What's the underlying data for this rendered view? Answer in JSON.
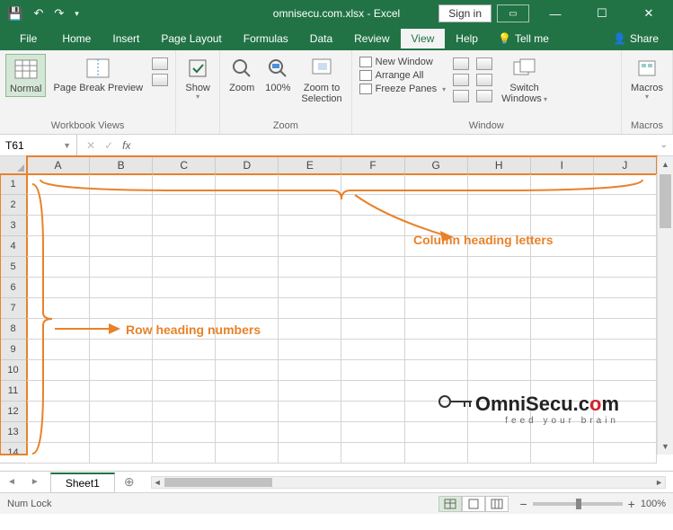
{
  "titlebar": {
    "filename": "omnisecu.com.xlsx",
    "app": "Excel",
    "signin": "Sign in"
  },
  "tabs": {
    "file": "File",
    "home": "Home",
    "insert": "Insert",
    "pagelayout": "Page Layout",
    "formulas": "Formulas",
    "data": "Data",
    "review": "Review",
    "view": "View",
    "help": "Help",
    "tellme": "Tell me",
    "share": "Share"
  },
  "ribbon": {
    "workbook_views": {
      "label": "Workbook Views",
      "normal": "Normal",
      "pagebreak": "Page Break Preview"
    },
    "show": {
      "btn": "Show"
    },
    "zoom": {
      "label": "Zoom",
      "zoom": "Zoom",
      "hundred": "100%",
      "selection_l1": "Zoom to",
      "selection_l2": "Selection"
    },
    "window": {
      "label": "Window",
      "new": "New Window",
      "arrange": "Arrange All",
      "freeze": "Freeze Panes",
      "switch_l1": "Switch",
      "switch_l2": "Windows"
    },
    "macros": {
      "label": "Macros",
      "btn": "Macros"
    }
  },
  "namebox": "T61",
  "columns": [
    "A",
    "B",
    "C",
    "D",
    "E",
    "F",
    "G",
    "H",
    "I",
    "J"
  ],
  "rows": [
    "1",
    "2",
    "3",
    "4",
    "5",
    "6",
    "7",
    "8",
    "9",
    "10",
    "11",
    "12",
    "13",
    "14"
  ],
  "annotations": {
    "col": "Column heading letters",
    "row": "Row heading numbers",
    "accent_color": "#e8822a"
  },
  "watermark": {
    "text_prefix": "mniSecu.c",
    "o1": "O",
    "o2": "o",
    "m": "m",
    "tag": "feed your brain"
  },
  "sheet": {
    "name": "Sheet1"
  },
  "status": {
    "numlock": "Num Lock",
    "zoom": "100%"
  }
}
